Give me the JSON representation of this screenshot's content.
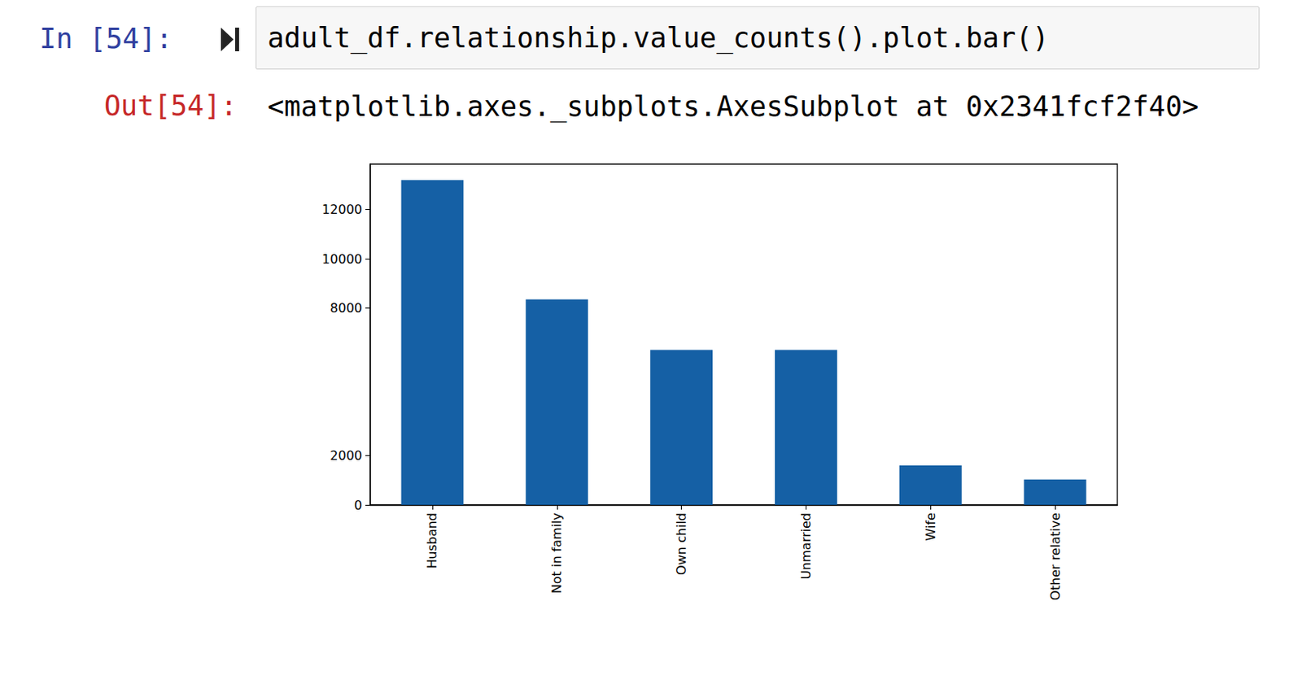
{
  "notebook": {
    "input_prompt": "In [54]:",
    "code": "adult_df.relationship.value_counts().plot.bar()",
    "output_prompt": "Out[54]:",
    "output_text": "<matplotlib.axes._subplots.AxesSubplot at 0x2341fcf2f40>"
  },
  "chart_data": {
    "type": "bar",
    "categories": [
      "Husband",
      "Not in family",
      "Own child",
      "Unmarried",
      "Wife",
      "Other relative"
    ],
    "values": [
      13200,
      8350,
      6300,
      6300,
      1600,
      1035
    ],
    "color": "#1560a5",
    "ylim": [
      0,
      13850
    ],
    "yticks": [
      0,
      2000,
      8000,
      10000,
      12000
    ],
    "grid": false
  }
}
